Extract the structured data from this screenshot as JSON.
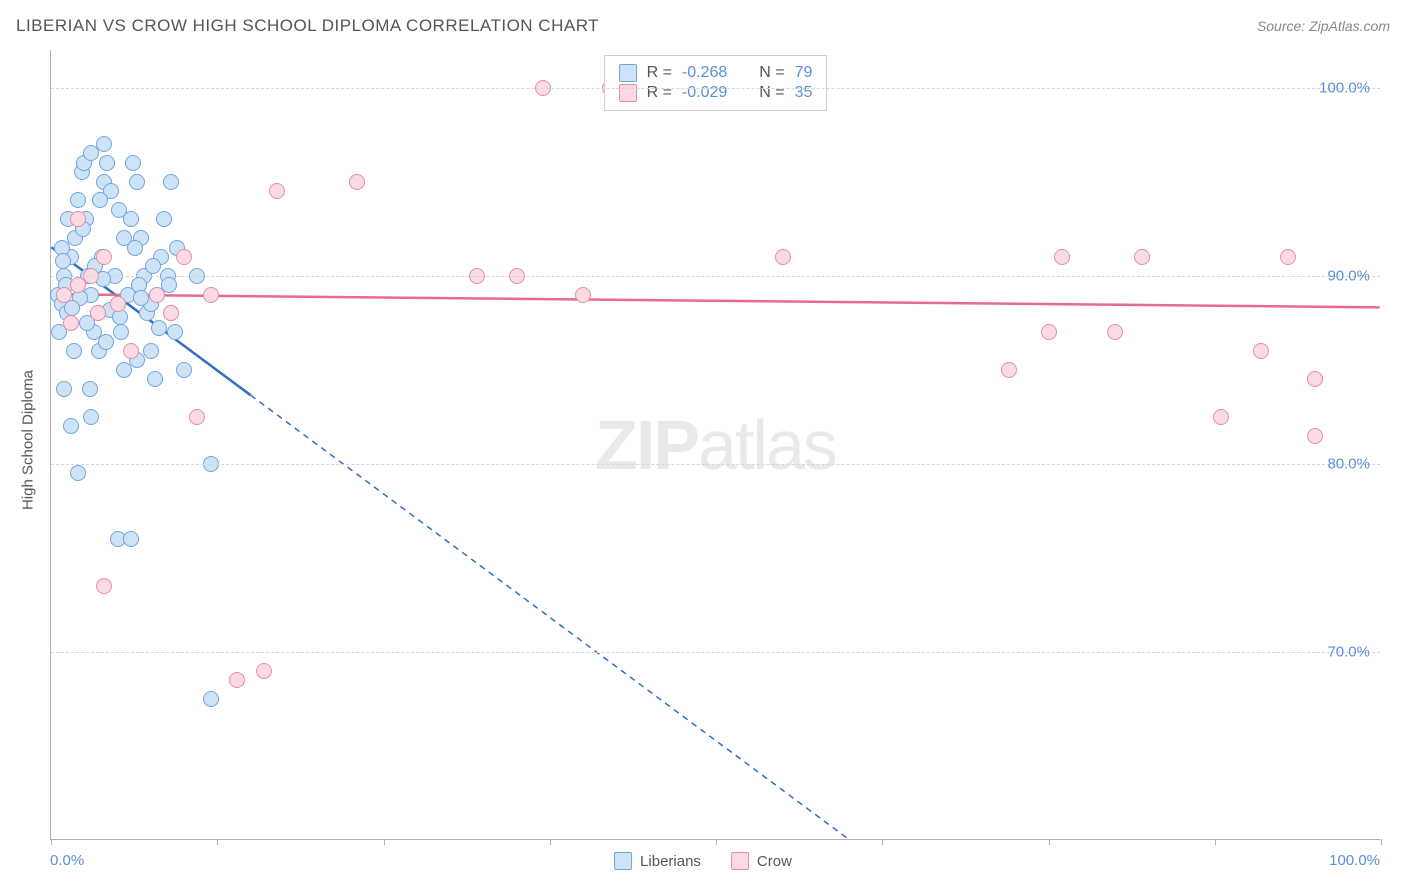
{
  "title": "LIBERIAN VS CROW HIGH SCHOOL DIPLOMA CORRELATION CHART",
  "source": "Source: ZipAtlas.com",
  "y_axis_label": "High School Diploma",
  "watermark_bold": "ZIP",
  "watermark_rest": "atlas",
  "chart": {
    "type": "scatter",
    "xlim": [
      0,
      100
    ],
    "ylim": [
      60,
      102
    ],
    "y_ticks": [
      70,
      80,
      90,
      100
    ],
    "y_tick_labels": [
      "70.0%",
      "80.0%",
      "90.0%",
      "100.0%"
    ],
    "x_ticks": [
      0,
      12.5,
      25,
      37.5,
      50,
      62.5,
      75,
      87.5,
      100
    ],
    "x_min_label": "0.0%",
    "x_max_label": "100.0%",
    "background_color": "#ffffff",
    "grid_color": "#d5d5d5",
    "marker_radius": 8,
    "marker_stroke_width": 1.2,
    "series": [
      {
        "name": "Liberians",
        "fill": "#cfe3f7",
        "stroke": "#6fa5dd",
        "line_color": "#2f6fc0",
        "R": "-0.268",
        "N": "79",
        "trend": {
          "x1": 0,
          "y1": 91.5,
          "x2": 60,
          "y2": 60,
          "solid_until_x": 15
        },
        "points": [
          [
            0.5,
            89
          ],
          [
            0.8,
            88.5
          ],
          [
            1,
            90
          ],
          [
            1.2,
            88
          ],
          [
            1.5,
            91
          ],
          [
            1.8,
            92
          ],
          [
            2,
            94
          ],
          [
            2.3,
            95.5
          ],
          [
            2.5,
            96
          ],
          [
            2.6,
            93
          ],
          [
            2.8,
            90
          ],
          [
            3,
            89
          ],
          [
            3.2,
            87
          ],
          [
            3.5,
            88
          ],
          [
            3.6,
            86
          ],
          [
            3.8,
            91
          ],
          [
            4,
            95
          ],
          [
            4.2,
            96
          ],
          [
            4.5,
            94.5
          ],
          [
            4.8,
            90
          ],
          [
            5,
            88.5
          ],
          [
            5.3,
            87
          ],
          [
            5.5,
            85
          ],
          [
            5.8,
            89
          ],
          [
            6,
            93
          ],
          [
            6.2,
            96
          ],
          [
            6.5,
            95
          ],
          [
            6.8,
            92
          ],
          [
            7,
            90
          ],
          [
            7.2,
            88
          ],
          [
            7.5,
            86
          ],
          [
            7.8,
            84.5
          ],
          [
            8,
            89
          ],
          [
            8.3,
            91
          ],
          [
            8.5,
            93
          ],
          [
            8.8,
            90
          ],
          [
            9,
            88
          ],
          [
            9.3,
            87
          ],
          [
            9.5,
            91.5
          ],
          [
            1,
            84
          ],
          [
            1.5,
            82
          ],
          [
            3,
            82.5
          ],
          [
            2,
            79.5
          ],
          [
            5,
            76
          ],
          [
            6,
            76
          ],
          [
            12,
            80
          ],
          [
            10,
            85
          ],
          [
            11,
            90
          ],
          [
            9,
            95
          ],
          [
            4,
            97
          ],
          [
            3,
            96.5
          ],
          [
            6.5,
            85.5
          ],
          [
            7.5,
            88.5
          ],
          [
            0.8,
            91.5
          ],
          [
            1.3,
            93
          ],
          [
            2.2,
            88.8
          ],
          [
            3.3,
            90.5
          ],
          [
            4.4,
            88.2
          ],
          [
            5.5,
            92
          ],
          [
            6.6,
            89.5
          ],
          [
            1.7,
            86
          ],
          [
            2.9,
            84
          ],
          [
            4.1,
            86.5
          ],
          [
            0.6,
            87
          ],
          [
            1.1,
            89.5
          ],
          [
            2.4,
            92.5
          ],
          [
            3.7,
            94
          ],
          [
            5.1,
            93.5
          ],
          [
            6.3,
            91.5
          ],
          [
            7.7,
            90.5
          ],
          [
            8.9,
            89.5
          ],
          [
            0.9,
            90.8
          ],
          [
            1.6,
            88.3
          ],
          [
            2.7,
            87.5
          ],
          [
            3.9,
            89.8
          ],
          [
            5.2,
            87.8
          ],
          [
            6.8,
            88.8
          ],
          [
            8.1,
            87.2
          ],
          [
            12,
            67.5
          ]
        ]
      },
      {
        "name": "Crow",
        "fill": "#fbdbe3",
        "stroke": "#e98ba5",
        "line_color": "#e86a8e",
        "R": "-0.029",
        "N": "35",
        "trend": {
          "x1": 0,
          "y1": 89,
          "x2": 100,
          "y2": 88.3,
          "solid_until_x": 100
        },
        "points": [
          [
            1,
            89
          ],
          [
            2,
            89.5
          ],
          [
            3,
            90
          ],
          [
            4,
            91
          ],
          [
            5,
            88.5
          ],
          [
            6,
            86
          ],
          [
            8,
            89
          ],
          [
            10,
            91
          ],
          [
            11,
            82.5
          ],
          [
            4,
            73.5
          ],
          [
            2,
            93
          ],
          [
            3.5,
            88
          ],
          [
            17,
            94.5
          ],
          [
            23,
            95
          ],
          [
            37,
            100
          ],
          [
            42,
            100
          ],
          [
            32,
            90
          ],
          [
            35,
            90
          ],
          [
            40,
            89
          ],
          [
            55,
            91
          ],
          [
            93,
            91
          ],
          [
            76,
            91
          ],
          [
            82,
            91
          ],
          [
            75,
            87
          ],
          [
            80,
            87
          ],
          [
            91,
            86
          ],
          [
            95,
            84.5
          ],
          [
            72,
            85
          ],
          [
            88,
            82.5
          ],
          [
            95,
            81.5
          ],
          [
            14,
            68.5
          ],
          [
            16,
            69
          ],
          [
            9,
            88
          ],
          [
            12,
            89
          ],
          [
            1.5,
            87.5
          ]
        ]
      }
    ]
  },
  "stats_labels": {
    "R": "R =",
    "N": "N ="
  },
  "legend_labels": {
    "liberians": "Liberians",
    "crow": "Crow"
  }
}
